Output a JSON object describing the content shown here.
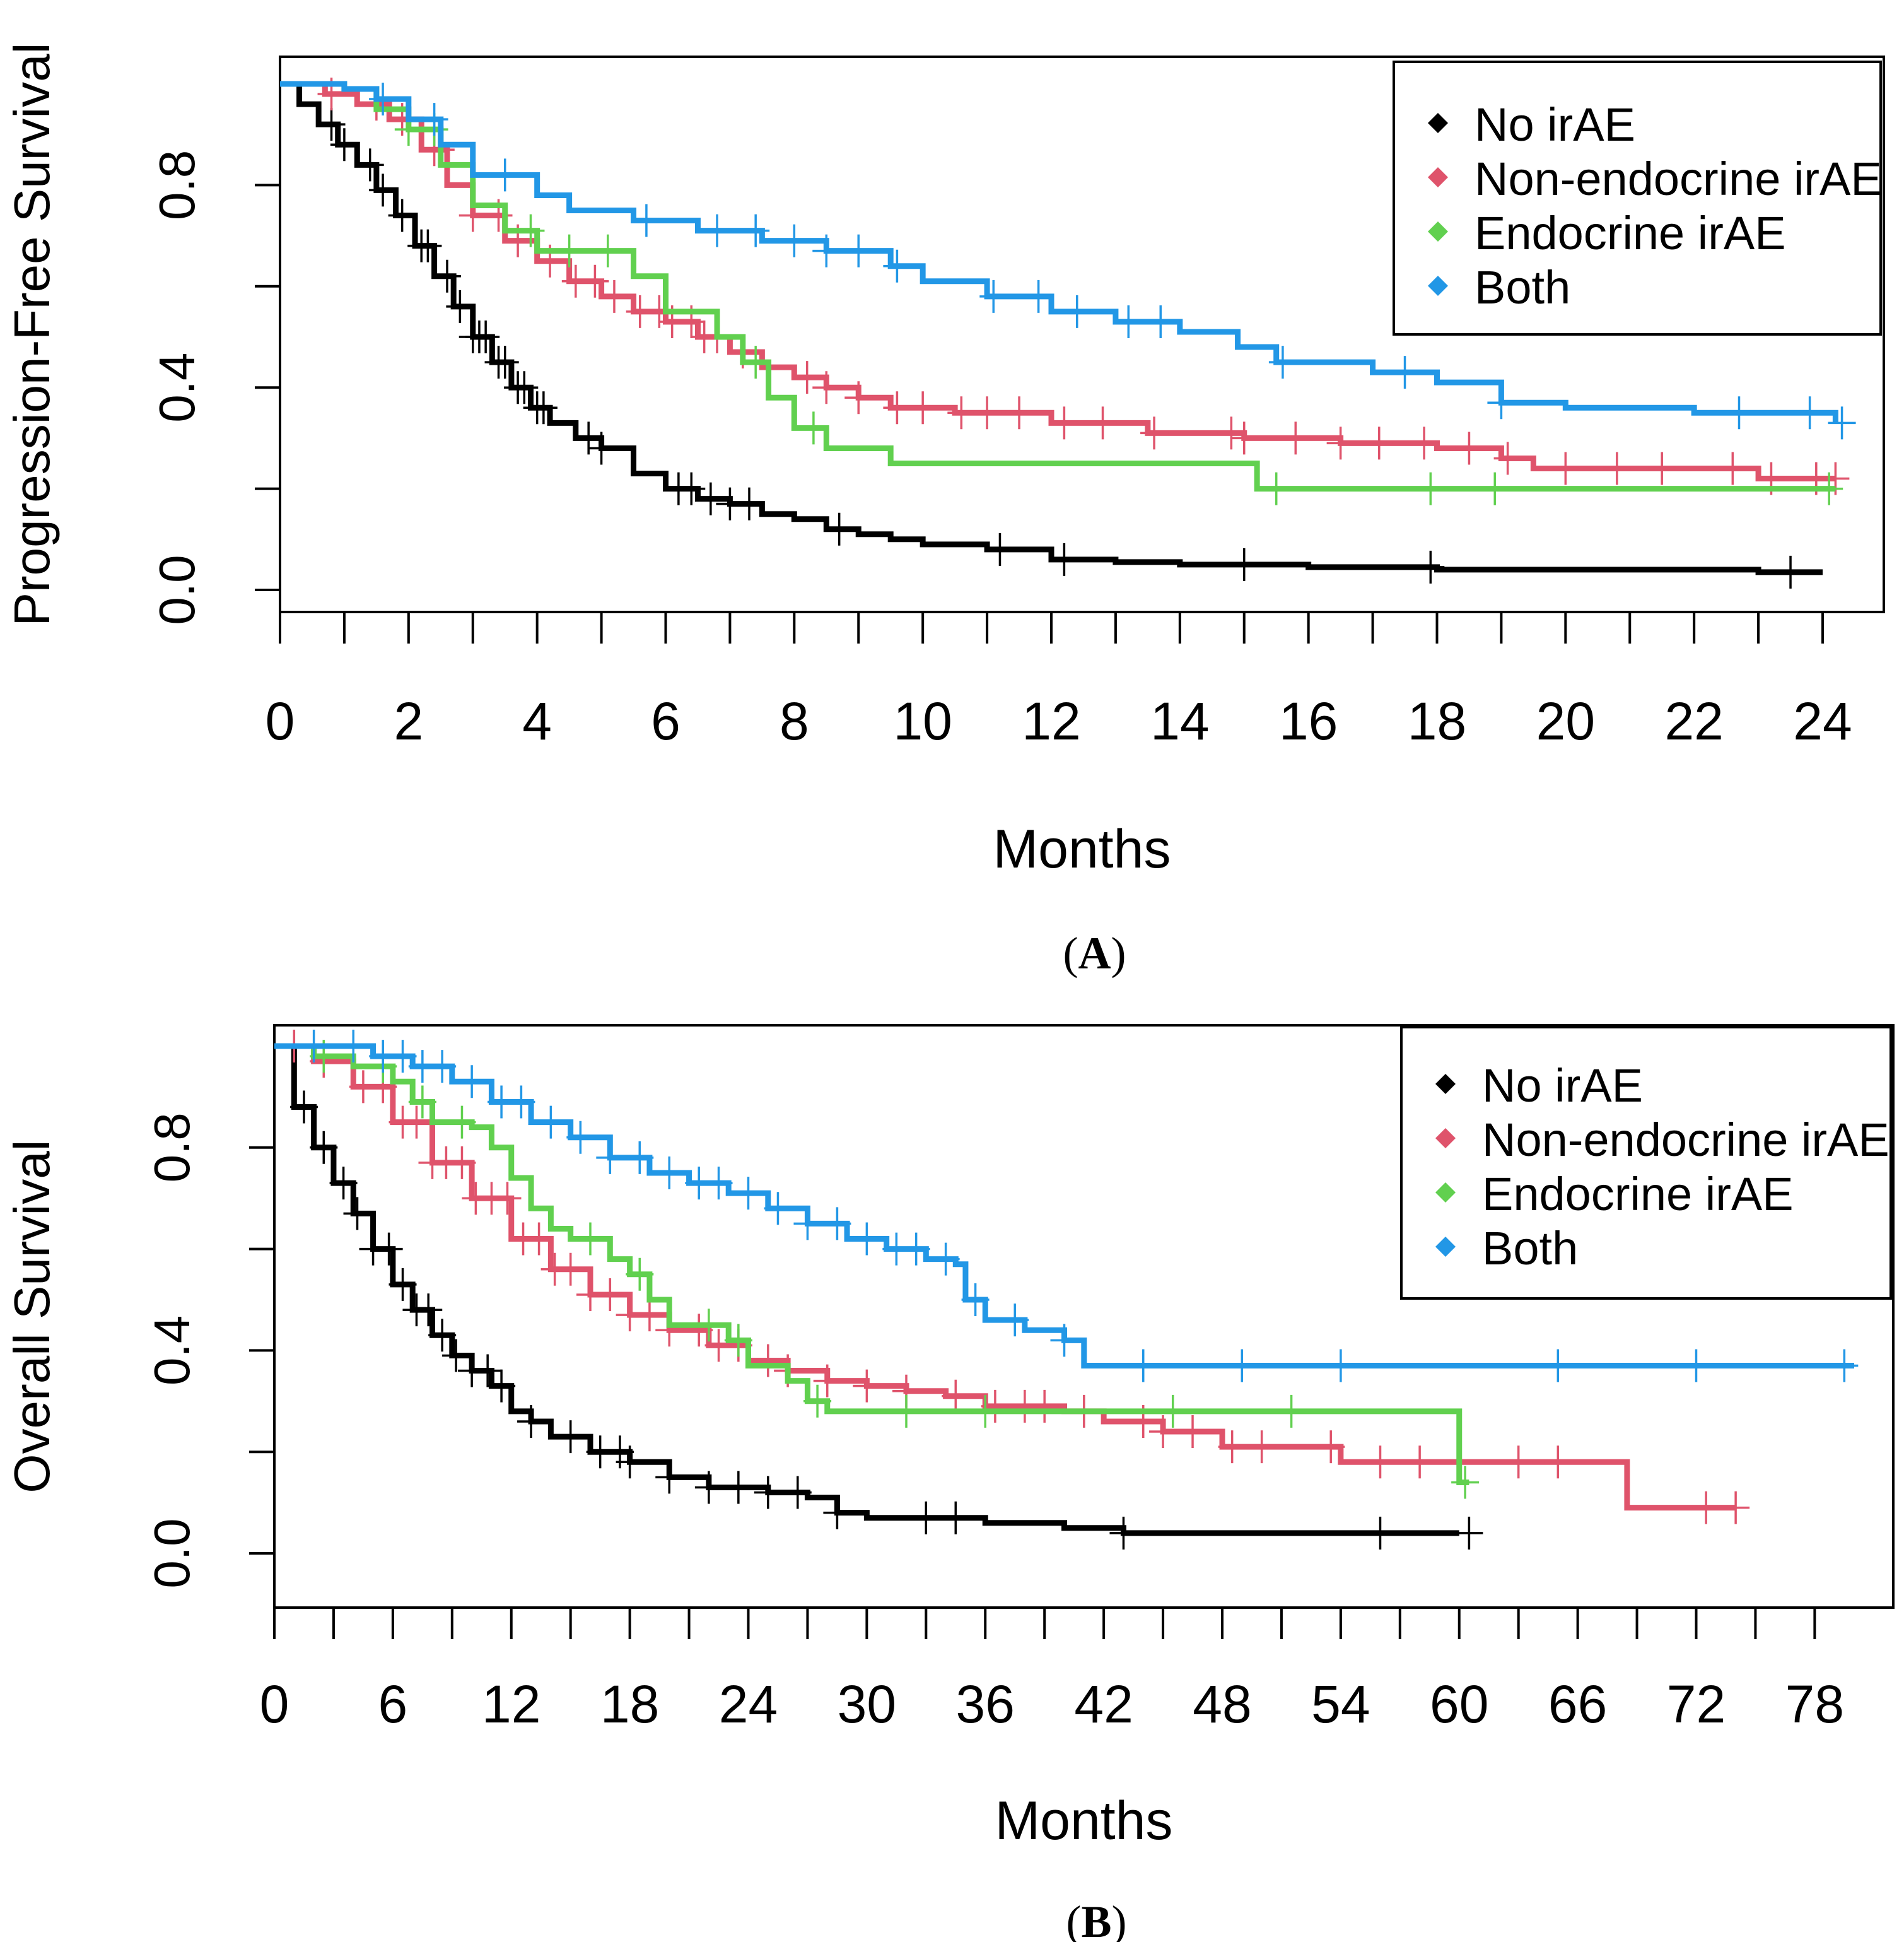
{
  "chart_data": [
    {
      "type": "line",
      "panel_label": "(A)",
      "panel_letter": "A",
      "xlabel": "Months",
      "ylabel": "Progression-Free Survival",
      "xlim": [
        0,
        24
      ],
      "ylim": [
        0,
        1
      ],
      "xticks": [
        0,
        2,
        4,
        6,
        8,
        10,
        12,
        14,
        16,
        18,
        20,
        22,
        24
      ],
      "xticks_minor": [
        1,
        3,
        5,
        7,
        9,
        11,
        13,
        15,
        17,
        19,
        21,
        23
      ],
      "yticks": [
        0,
        0.2,
        0.4,
        0.6,
        0.8
      ],
      "ytick_labels": [
        "0.0",
        "",
        "0.4",
        "",
        "0.8"
      ],
      "grid": false,
      "legend_position": "top-right",
      "legend": [
        {
          "label": "No irAE",
          "color": "#000000"
        },
        {
          "label": "Non-endocrine irAE",
          "color": "#DF536B"
        },
        {
          "label": "Endocrine irAE",
          "color": "#61D04F"
        },
        {
          "label": "Both",
          "color": "#2297E6"
        }
      ],
      "series": [
        {
          "name": "No irAE",
          "color": "#000000",
          "x": [
            0,
            0.3,
            0.6,
            0.9,
            1.2,
            1.5,
            1.8,
            2.1,
            2.4,
            2.7,
            3.0,
            3.3,
            3.6,
            3.9,
            4.2,
            4.6,
            5.0,
            5.5,
            6.0,
            6.5,
            7.0,
            7.5,
            8.0,
            8.5,
            9.0,
            9.5,
            10.0,
            11.0,
            12.0,
            13.0,
            14.0,
            15.0,
            16.0,
            17.0,
            18.0,
            20.0,
            22.0,
            23.0,
            24.0
          ],
          "y": [
            1.0,
            0.96,
            0.92,
            0.88,
            0.84,
            0.79,
            0.74,
            0.68,
            0.62,
            0.56,
            0.5,
            0.45,
            0.4,
            0.36,
            0.33,
            0.3,
            0.28,
            0.23,
            0.2,
            0.18,
            0.17,
            0.15,
            0.14,
            0.12,
            0.11,
            0.1,
            0.09,
            0.08,
            0.06,
            0.055,
            0.05,
            0.05,
            0.045,
            0.045,
            0.04,
            0.04,
            0.04,
            0.035,
            0.035
          ],
          "censor_x": [
            0.8,
            1.0,
            1.4,
            1.6,
            1.9,
            2.2,
            2.3,
            2.6,
            2.8,
            3.0,
            3.1,
            3.2,
            3.4,
            3.5,
            3.7,
            3.8,
            4.0,
            4.1,
            4.8,
            5.0,
            6.2,
            6.4,
            6.7,
            7.0,
            7.3,
            8.7,
            11.2,
            12.2,
            15.0,
            17.9,
            23.5
          ]
        },
        {
          "name": "Non-endocrine irAE",
          "color": "#DF536B",
          "x": [
            0,
            0.7,
            1.2,
            1.7,
            2.2,
            2.6,
            3.0,
            3.5,
            4.0,
            4.5,
            5.0,
            5.5,
            6.0,
            6.5,
            7.0,
            7.5,
            8.0,
            8.5,
            9.0,
            9.5,
            10.5,
            12.0,
            13.5,
            15.0,
            16.5,
            18.0,
            19.0,
            19.5,
            21.0,
            23.0,
            24.2
          ],
          "y": [
            1.0,
            0.98,
            0.96,
            0.93,
            0.87,
            0.8,
            0.74,
            0.69,
            0.65,
            0.61,
            0.58,
            0.55,
            0.53,
            0.5,
            0.47,
            0.44,
            0.42,
            0.4,
            0.38,
            0.36,
            0.35,
            0.33,
            0.31,
            0.3,
            0.29,
            0.28,
            0.26,
            0.24,
            0.24,
            0.22,
            0.22
          ],
          "censor_x": [
            0.8,
            1.5,
            1.9,
            2.4,
            2.5,
            3.0,
            3.4,
            3.7,
            4.2,
            4.6,
            4.9,
            5.2,
            5.6,
            5.9,
            6.1,
            6.4,
            6.6,
            6.8,
            7.2,
            8.2,
            8.5,
            9.0,
            9.6,
            10.0,
            10.6,
            11.0,
            11.5,
            12.2,
            12.8,
            13.6,
            14.8,
            15.0,
            15.8,
            16.5,
            17.1,
            17.8,
            18.5,
            19.1,
            20.0,
            20.8,
            21.5,
            22.6,
            23.2,
            23.9,
            24.2
          ]
        },
        {
          "name": "Endocrine irAE",
          "color": "#61D04F",
          "x": [
            0,
            1.0,
            1.5,
            2.0,
            2.5,
            3.0,
            3.5,
            4.0,
            5.5,
            6.0,
            6.8,
            7.2,
            7.6,
            8.0,
            8.5,
            9.5,
            12.0,
            14.9,
            15.2,
            18.0,
            24.2
          ],
          "y": [
            1.0,
            0.99,
            0.95,
            0.91,
            0.84,
            0.76,
            0.71,
            0.67,
            0.62,
            0.55,
            0.5,
            0.45,
            0.38,
            0.32,
            0.28,
            0.25,
            0.25,
            0.25,
            0.2,
            0.2,
            0.2
          ],
          "censor_x": [
            2.0,
            2.4,
            3.9,
            4.5,
            5.1,
            7.4,
            8.3,
            15.5,
            17.9,
            18.9,
            24.1
          ]
        },
        {
          "name": "Both",
          "color": "#2297E6",
          "x": [
            0,
            1.0,
            1.5,
            2.0,
            2.5,
            3.0,
            4.0,
            4.5,
            5.5,
            6.5,
            7.5,
            8.5,
            9.5,
            10.0,
            11.0,
            12.0,
            13.0,
            14.0,
            14.9,
            15.5,
            17.0,
            18.0,
            19.0,
            20.0,
            22.0,
            24.2
          ],
          "y": [
            1.0,
            0.99,
            0.97,
            0.93,
            0.88,
            0.82,
            0.78,
            0.75,
            0.73,
            0.71,
            0.69,
            0.67,
            0.64,
            0.61,
            0.58,
            0.55,
            0.53,
            0.51,
            0.48,
            0.45,
            0.43,
            0.41,
            0.37,
            0.36,
            0.35,
            0.33
          ],
          "censor_x": [
            1.6,
            2.4,
            3.5,
            5.7,
            6.8,
            7.4,
            8.0,
            8.5,
            9.0,
            9.6,
            11.1,
            11.8,
            12.4,
            13.2,
            13.7,
            15.6,
            17.5,
            19.0,
            22.7,
            23.8,
            24.3
          ]
        }
      ]
    },
    {
      "type": "line",
      "panel_label": "(B)",
      "panel_letter": "B",
      "xlabel": "Months",
      "ylabel": "Overall Survival",
      "xlim": [
        0,
        80
      ],
      "ylim": [
        0,
        1
      ],
      "xticks": [
        0,
        6,
        12,
        18,
        24,
        30,
        36,
        42,
        48,
        54,
        60,
        66,
        72,
        78
      ],
      "xticks_minor": [
        3,
        9,
        15,
        21,
        27,
        33,
        39,
        45,
        51,
        57,
        63,
        69,
        75
      ],
      "yticks": [
        0,
        0.2,
        0.4,
        0.6,
        0.8
      ],
      "ytick_labels": [
        "0.0",
        "",
        "0.4",
        "",
        "0.8"
      ],
      "grid": false,
      "legend_position": "top-right",
      "legend": [
        {
          "label": "No irAE",
          "color": "#000000"
        },
        {
          "label": "Non-endocrine irAE",
          "color": "#DF536B"
        },
        {
          "label": "Endocrine irAE",
          "color": "#61D04F"
        },
        {
          "label": "Both",
          "color": "#2297E6"
        }
      ],
      "series": [
        {
          "name": "No irAE",
          "color": "#000000",
          "x": [
            0,
            1,
            2,
            3,
            4,
            5,
            6,
            7,
            8,
            9,
            10,
            11,
            12,
            13,
            14,
            16,
            18,
            20,
            22,
            25,
            27,
            28.5,
            30,
            33,
            36,
            40,
            43,
            48,
            54,
            60
          ],
          "y": [
            1.0,
            0.88,
            0.8,
            0.73,
            0.67,
            0.6,
            0.53,
            0.48,
            0.43,
            0.39,
            0.36,
            0.33,
            0.28,
            0.26,
            0.23,
            0.2,
            0.18,
            0.15,
            0.13,
            0.12,
            0.11,
            0.08,
            0.07,
            0.07,
            0.06,
            0.05,
            0.04,
            0.04,
            0.04,
            0.04
          ],
          "censor_x": [
            1.5,
            2.5,
            3.5,
            4.2,
            5.0,
            5.8,
            6.5,
            7.2,
            7.8,
            8.5,
            9.2,
            10.0,
            10.8,
            11.5,
            13.0,
            15.0,
            16.5,
            17.5,
            18.0,
            20.0,
            22.0,
            23.5,
            25.0,
            26.5,
            28.5,
            33.0,
            34.5,
            43.0,
            56.0,
            60.5
          ]
        },
        {
          "name": "Non-endocrine irAE",
          "color": "#DF536B",
          "x": [
            0,
            2,
            4,
            6,
            8,
            10,
            12,
            14,
            16,
            18,
            20,
            22,
            24,
            26,
            28,
            30,
            32,
            34,
            36,
            40,
            42,
            45,
            48,
            54,
            60,
            68,
            68.5,
            74
          ],
          "y": [
            1.0,
            0.97,
            0.92,
            0.85,
            0.77,
            0.7,
            0.62,
            0.56,
            0.51,
            0.47,
            0.44,
            0.41,
            0.38,
            0.36,
            0.34,
            0.33,
            0.32,
            0.31,
            0.29,
            0.28,
            0.26,
            0.24,
            0.21,
            0.18,
            0.18,
            0.18,
            0.09,
            0.09
          ],
          "censor_x": [
            1.0,
            2.5,
            4.5,
            5.5,
            6.5,
            7.2,
            8.0,
            8.7,
            9.5,
            10.2,
            11.0,
            11.8,
            12.6,
            13.4,
            14.2,
            15.0,
            16.0,
            17.0,
            18.0,
            19.0,
            20.0,
            21.5,
            22.5,
            23.5,
            25.0,
            26.0,
            28.0,
            30.0,
            32.0,
            34.5,
            36.5,
            38.0,
            39.0,
            41.0,
            44.0,
            45.0,
            46.5,
            48.5,
            50.0,
            53.5,
            56.0,
            58.0,
            63.0,
            65.0,
            72.5,
            74.0
          ]
        },
        {
          "name": "Endocrine irAE",
          "color": "#61D04F",
          "x": [
            0,
            2,
            4,
            6,
            7,
            8,
            10,
            11,
            12,
            13,
            14,
            15,
            17,
            18,
            19,
            20,
            22,
            23,
            24,
            26,
            27,
            28,
            30,
            35,
            42,
            48,
            55,
            59.8,
            60,
            60.5
          ],
          "y": [
            1.0,
            0.98,
            0.96,
            0.93,
            0.89,
            0.85,
            0.84,
            0.8,
            0.74,
            0.68,
            0.64,
            0.62,
            0.58,
            0.55,
            0.5,
            0.45,
            0.45,
            0.42,
            0.37,
            0.34,
            0.3,
            0.28,
            0.28,
            0.28,
            0.28,
            0.28,
            0.28,
            0.28,
            0.14,
            0.14
          ],
          "censor_x": [
            2.5,
            5.5,
            7.5,
            9.5,
            16.0,
            18.5,
            22.0,
            23.5,
            27.5,
            32.0,
            36.0,
            45.5,
            51.5,
            60.3
          ]
        },
        {
          "name": "Both",
          "color": "#2297E6",
          "x": [
            0,
            3,
            5,
            7,
            9,
            11,
            13,
            15,
            17,
            19,
            21,
            23,
            25,
            27,
            29,
            31,
            33,
            34.5,
            35,
            36,
            38,
            40,
            41,
            42,
            45,
            50,
            60,
            70,
            79,
            80
          ],
          "y": [
            1.0,
            1.0,
            0.98,
            0.96,
            0.93,
            0.89,
            0.85,
            0.82,
            0.78,
            0.75,
            0.73,
            0.71,
            0.68,
            0.65,
            0.62,
            0.6,
            0.58,
            0.57,
            0.5,
            0.46,
            0.44,
            0.42,
            0.37,
            0.37,
            0.37,
            0.37,
            0.37,
            0.37,
            0.37,
            0.37
          ],
          "censor_x": [
            2.0,
            4.0,
            5.5,
            6.5,
            7.5,
            8.5,
            10.0,
            11.5,
            12.5,
            14.0,
            15.5,
            17.0,
            18.5,
            20.0,
            21.5,
            22.5,
            24.0,
            25.5,
            27.0,
            28.5,
            30.0,
            31.5,
            32.5,
            34.0,
            35.5,
            37.5,
            40.0,
            44.0,
            49.0,
            54.0,
            65.0,
            72.0,
            79.5
          ]
        }
      ]
    }
  ]
}
